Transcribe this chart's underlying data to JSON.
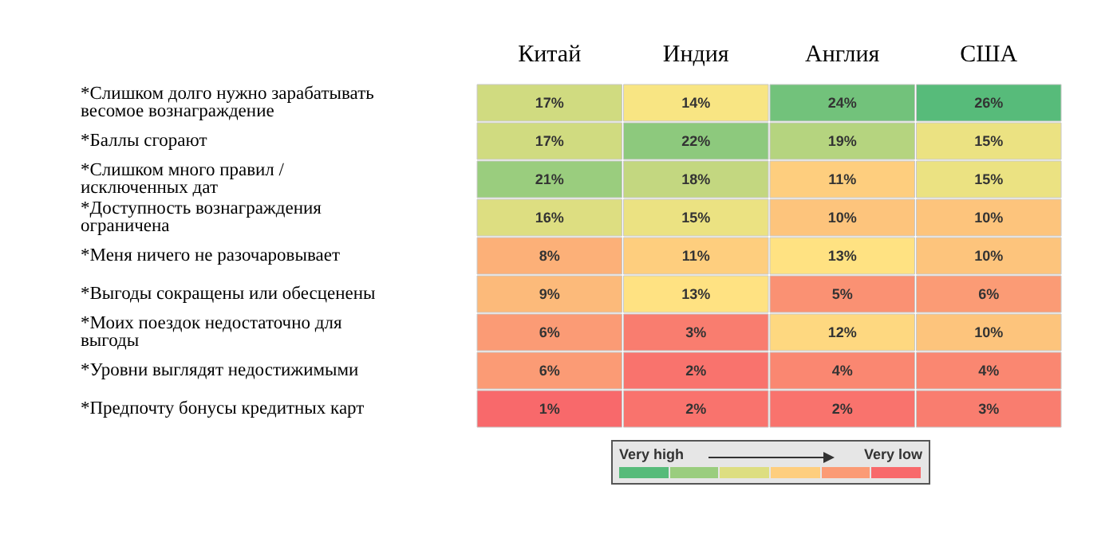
{
  "chart_data": {
    "type": "heatmap",
    "categories": [
      "Китай",
      "Индия",
      "Англия",
      "США"
    ],
    "y_categories": [
      "*Слишком долго нужно зарабатывать весомое вознаграждение",
      "*Баллы сгорают",
      "*Слишком много правил / исключенных дат",
      "*Доступность вознаграждения ограничена",
      "*Меня ничего не разочаровывает",
      "*Выгоды сокращены или обесценены",
      "*Моих поездок недостаточно для выгоды",
      "*Уровни выглядят недостижимыми",
      "*Предпочту бонусы кредитных карт"
    ],
    "cells": [
      [
        17,
        14,
        24,
        26
      ],
      [
        17,
        22,
        19,
        15
      ],
      [
        21,
        18,
        11,
        15
      ],
      [
        16,
        15,
        10,
        10
      ],
      [
        8,
        11,
        13,
        10
      ],
      [
        9,
        13,
        5,
        6
      ],
      [
        6,
        3,
        12,
        10
      ],
      [
        6,
        2,
        4,
        4
      ],
      [
        1,
        2,
        2,
        3
      ]
    ],
    "cell_labels": [
      [
        "17%",
        "14%",
        "24%",
        "26%"
      ],
      [
        "17%",
        "22%",
        "19%",
        "15%"
      ],
      [
        "21%",
        "18%",
        "11%",
        "15%"
      ],
      [
        "16%",
        "15%",
        "10%",
        "10%"
      ],
      [
        "8%",
        "11%",
        "13%",
        "10%"
      ],
      [
        "9%",
        "13%",
        "5%",
        "6%"
      ],
      [
        "6%",
        "3%",
        "12%",
        "10%"
      ],
      [
        "6%",
        "2%",
        "4%",
        "4%"
      ],
      [
        "1%",
        "2%",
        "2%",
        "3%"
      ]
    ],
    "annotations": [
      "Very high",
      "Very low"
    ]
  }
}
